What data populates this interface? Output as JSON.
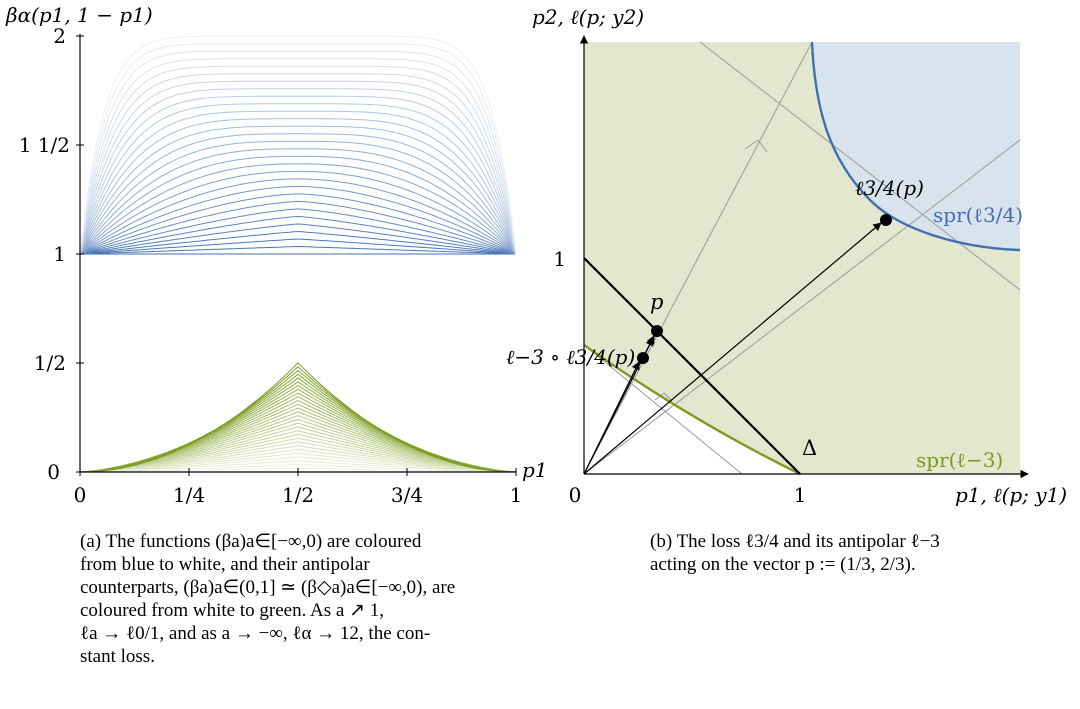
{
  "panel_a": {
    "ylabel": "βα(p1, 1 − p1)",
    "xlabel": "p1",
    "xticks": [
      "0",
      "1/4",
      "1/2",
      "3/4",
      "1"
    ],
    "yticks": [
      "0",
      "1/2",
      "1",
      "1 1/2",
      "2"
    ],
    "caption_tag": "(a)",
    "caption_lines": [
      "The functions (βa)a∈[−∞,0) are coloured",
      "from blue to white, and their antipolar",
      "counterparts, (βa)a∈(0,1] ≃ (β◇a)a∈[−∞,0), are",
      "coloured from white to green.  As a ↗ 1,",
      "ℓa → ℓ0/1, and as a → −∞, ℓα → 12, the con-",
      "stant loss."
    ]
  },
  "panel_b": {
    "ylabel": "p2, ℓ(p; y2)",
    "xlabel": "p1, ℓ(p; y1)",
    "xticks": [
      "0",
      "1"
    ],
    "yticks": [
      "1"
    ],
    "label_p": "p",
    "label_l34": "ℓ3/4(p)",
    "label_comp": "ℓ−3 ∘ ℓ3/4(p)",
    "label_delta": "Δ",
    "label_spr_blue": "spr(ℓ3/4)",
    "label_spr_green": "spr(ℓ−3)",
    "caption_tag": "(b)",
    "caption_lines": [
      "The loss ℓ3/4 and its antipolar ℓ−3",
      "acting on the vector p := (1/3, 2/3)."
    ]
  },
  "colors": {
    "blue": "#3f6fb3",
    "green": "#7d9a1e",
    "green_fill": "#e2e7cd",
    "blue_fill": "#d8e3ee"
  },
  "chart_data": [
    {
      "type": "line",
      "title": "",
      "xlabel": "p1",
      "ylabel": "βα(p1, 1 − p1)",
      "xlim": [
        0,
        1
      ],
      "ylim": [
        0,
        2
      ],
      "series": [
        {
          "family": "blue-to-white",
          "description_values": "curves from 1 at p1=0 and p1=1 rising toward peaks between 1 and 2 at p1=1/2",
          "count": 30
        },
        {
          "family": "white-to-green",
          "description_values": "triangular curves from 0 at p1=0 and 1 peaking up to 1/2 at p1=1/2",
          "count": 30
        }
      ]
    },
    {
      "type": "scatter",
      "title": "",
      "xlabel": "p1, ℓ(p; y1)",
      "ylabel": "p2, ℓ(p; y2)",
      "xlim": [
        0,
        2
      ],
      "ylim": [
        0,
        2
      ],
      "points": [
        {
          "name": "p",
          "x": 0.333,
          "y": 0.667
        },
        {
          "name": "ℓ3/4(p)",
          "x": 1.41,
          "y": 1.17
        },
        {
          "name": "ℓ−3 ∘ ℓ3/4(p)",
          "x": 0.28,
          "y": 0.54
        }
      ]
    }
  ]
}
